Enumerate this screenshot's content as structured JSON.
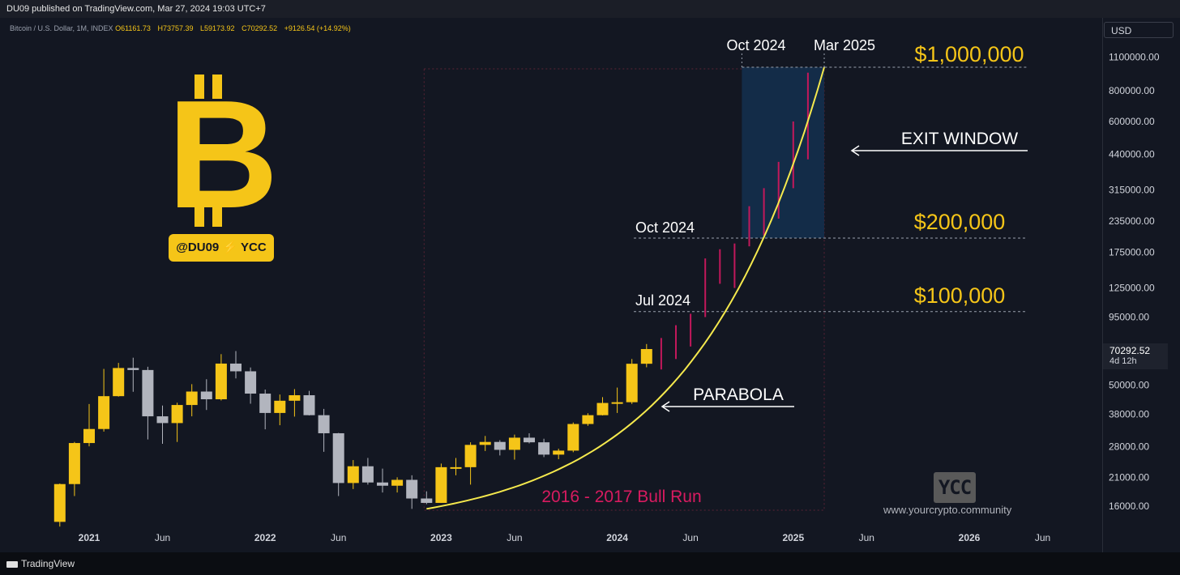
{
  "header": {
    "published": "DU09 published on TradingView.com, Mar 27, 2024 19:03 UTC+7",
    "symbol": "Bitcoin / U.S. Dollar, 1M, INDEX",
    "open": "O61161.73",
    "high": "H73757.39",
    "low": "L59173.92",
    "close": "C70292.52",
    "change": "+9126.54 (+14.92%)",
    "currency": "USD"
  },
  "last_price": {
    "value": "70292.52",
    "countdown": "4d 12h"
  },
  "annotations": {
    "top_dates": [
      "Oct 2024",
      "Mar 2025"
    ],
    "price_1m": "$1,000,000",
    "exit_window": "EXIT WINDOW",
    "oct_2024": "Oct 2024",
    "price_200k": "$200,000",
    "jul_2024": "Jul 2024",
    "price_100k": "$100,000",
    "parabola": "PARABOLA",
    "bull_run": "2016 - 2017 Bull Run",
    "badge": "@DU09 ⚡ YCC",
    "logo_symbol": "B",
    "ycc_logo": "YCC",
    "website": "www.yourcrypto.community"
  },
  "footer": {
    "brand": "TradingView"
  },
  "colors": {
    "bull": "#f5c518",
    "bear": "#b2b5be",
    "projection": "#c2185b",
    "parabola": "#f5e94d",
    "exit_fill": "#14304f",
    "gold_text": "#f5c518",
    "bull_run_text": "#d81b60",
    "background": "#131722"
  },
  "chart_data": {
    "type": "candlestick",
    "x_ticks": [
      "2021",
      "Jun",
      "2022",
      "Jun",
      "2023",
      "Jun",
      "2024",
      "Jun",
      "2025",
      "Jun",
      "2026",
      "Jun"
    ],
    "y_ticks": [
      "1100000.00",
      "800000.00",
      "600000.00",
      "440000.00",
      "315000.00",
      "235000.00",
      "175000.00",
      "125000.00",
      "95000.00",
      "50000.00",
      "38000.00",
      "28000.00",
      "21000.00",
      "16000.00"
    ],
    "y_scale": "log",
    "ylim": [
      14000,
      1250000
    ],
    "candles": [
      {
        "date": "2020-11",
        "o": 13800,
        "h": 19800,
        "l": 13200,
        "c": 19700
      },
      {
        "date": "2020-12",
        "o": 19700,
        "h": 29300,
        "l": 17600,
        "c": 29000
      },
      {
        "date": "2021-01",
        "o": 29000,
        "h": 41900,
        "l": 28100,
        "c": 33100
      },
      {
        "date": "2021-02",
        "o": 33100,
        "h": 58300,
        "l": 32300,
        "c": 45100
      },
      {
        "date": "2021-03",
        "o": 45100,
        "h": 61700,
        "l": 44900,
        "c": 58800
      },
      {
        "date": "2021-04",
        "o": 58800,
        "h": 64800,
        "l": 47000,
        "c": 57700
      },
      {
        "date": "2021-05",
        "o": 57700,
        "h": 59500,
        "l": 30000,
        "c": 37300
      },
      {
        "date": "2021-06",
        "o": 37300,
        "h": 41300,
        "l": 28800,
        "c": 35000
      },
      {
        "date": "2021-07",
        "o": 35000,
        "h": 42400,
        "l": 29300,
        "c": 41500
      },
      {
        "date": "2021-08",
        "o": 41500,
        "h": 50500,
        "l": 37300,
        "c": 47100
      },
      {
        "date": "2021-09",
        "o": 47100,
        "h": 52900,
        "l": 39600,
        "c": 43800
      },
      {
        "date": "2021-10",
        "o": 43800,
        "h": 67000,
        "l": 43300,
        "c": 61300
      },
      {
        "date": "2021-11",
        "o": 61300,
        "h": 69000,
        "l": 53300,
        "c": 57000
      },
      {
        "date": "2021-12",
        "o": 57000,
        "h": 59100,
        "l": 42000,
        "c": 46200
      },
      {
        "date": "2022-01",
        "o": 46200,
        "h": 48000,
        "l": 33000,
        "c": 38500
      },
      {
        "date": "2022-02",
        "o": 38500,
        "h": 45800,
        "l": 34300,
        "c": 43200
      },
      {
        "date": "2022-03",
        "o": 43200,
        "h": 48200,
        "l": 37200,
        "c": 45500
      },
      {
        "date": "2022-04",
        "o": 45500,
        "h": 47400,
        "l": 37600,
        "c": 37700
      },
      {
        "date": "2022-05",
        "o": 37700,
        "h": 40000,
        "l": 26700,
        "c": 31800
      },
      {
        "date": "2022-06",
        "o": 31800,
        "h": 31900,
        "l": 17600,
        "c": 19900
      },
      {
        "date": "2022-07",
        "o": 19900,
        "h": 24700,
        "l": 18800,
        "c": 23300
      },
      {
        "date": "2022-08",
        "o": 23300,
        "h": 25200,
        "l": 19600,
        "c": 20000
      },
      {
        "date": "2022-09",
        "o": 20000,
        "h": 22800,
        "l": 18200,
        "c": 19400
      },
      {
        "date": "2022-10",
        "o": 19400,
        "h": 21000,
        "l": 18200,
        "c": 20500
      },
      {
        "date": "2022-11",
        "o": 20500,
        "h": 21400,
        "l": 15600,
        "c": 17200
      },
      {
        "date": "2022-12",
        "o": 17200,
        "h": 18400,
        "l": 16300,
        "c": 16500
      },
      {
        "date": "2023-01",
        "o": 16500,
        "h": 23900,
        "l": 16500,
        "c": 23100
      },
      {
        "date": "2023-02",
        "o": 23100,
        "h": 25200,
        "l": 21400,
        "c": 23100
      },
      {
        "date": "2023-03",
        "o": 23100,
        "h": 29200,
        "l": 19600,
        "c": 28500
      },
      {
        "date": "2023-04",
        "o": 28500,
        "h": 31000,
        "l": 26900,
        "c": 29300
      },
      {
        "date": "2023-05",
        "o": 29300,
        "h": 29800,
        "l": 25800,
        "c": 27200
      },
      {
        "date": "2023-06",
        "o": 27200,
        "h": 31400,
        "l": 24800,
        "c": 30500
      },
      {
        "date": "2023-07",
        "o": 30500,
        "h": 31800,
        "l": 28900,
        "c": 29200
      },
      {
        "date": "2023-08",
        "o": 29200,
        "h": 30200,
        "l": 25400,
        "c": 26000
      },
      {
        "date": "2023-09",
        "o": 26000,
        "h": 27500,
        "l": 24900,
        "c": 27000
      },
      {
        "date": "2023-10",
        "o": 27000,
        "h": 35200,
        "l": 26600,
        "c": 34700
      },
      {
        "date": "2023-11",
        "o": 34700,
        "h": 38400,
        "l": 34100,
        "c": 37700
      },
      {
        "date": "2023-12",
        "o": 37700,
        "h": 44700,
        "l": 37600,
        "c": 42300
      },
      {
        "date": "2024-01",
        "o": 42300,
        "h": 48900,
        "l": 38500,
        "c": 42600
      },
      {
        "date": "2024-02",
        "o": 42600,
        "h": 64000,
        "l": 41900,
        "c": 61200
      },
      {
        "date": "2024-03",
        "o": 61200,
        "h": 73700,
        "l": 59200,
        "c": 70300
      }
    ],
    "projection": [
      {
        "date": "2024-04",
        "l": 58000,
        "h": 78000
      },
      {
        "date": "2024-05",
        "l": 64000,
        "h": 88000
      },
      {
        "date": "2024-06",
        "l": 72000,
        "h": 98000
      },
      {
        "date": "2024-07",
        "l": 95000,
        "h": 165000
      },
      {
        "date": "2024-08",
        "l": 130000,
        "h": 180000
      },
      {
        "date": "2024-09",
        "l": 125000,
        "h": 190000
      },
      {
        "date": "2024-10",
        "l": 185000,
        "h": 270000
      },
      {
        "date": "2024-11",
        "l": 205000,
        "h": 320000
      },
      {
        "date": "2024-12",
        "l": 240000,
        "h": 410000
      },
      {
        "date": "2025-01",
        "l": 320000,
        "h": 600000
      },
      {
        "date": "2025-02",
        "l": 420000,
        "h": 950000
      }
    ],
    "parabola": {
      "start_date": "2022-12",
      "start_price": 15600,
      "end_date": "2025-03",
      "end_price": 1000000
    }
  }
}
